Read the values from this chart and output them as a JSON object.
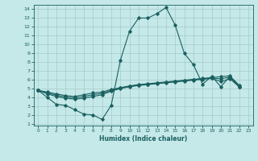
{
  "xlabel": "Humidex (Indice chaleur)",
  "bg_color": "#c5e8e8",
  "grid_color": "#aacfcf",
  "line_color": "#1a6060",
  "xlim": [
    -0.5,
    23.5
  ],
  "ylim": [
    0.8,
    14.5
  ],
  "xticks": [
    0,
    1,
    2,
    3,
    4,
    5,
    6,
    7,
    8,
    9,
    10,
    11,
    12,
    13,
    14,
    15,
    16,
    17,
    18,
    19,
    20,
    21,
    22,
    23
  ],
  "yticks": [
    1,
    2,
    3,
    4,
    5,
    6,
    7,
    8,
    9,
    10,
    11,
    12,
    13,
    14
  ],
  "series": [
    [
      4.8,
      4.0,
      3.2,
      3.1,
      2.6,
      2.1,
      2.0,
      1.5,
      3.1,
      8.2,
      11.5,
      13.0,
      13.0,
      13.5,
      14.2,
      12.2,
      9.0,
      7.7,
      5.5,
      6.4,
      5.2,
      6.4,
      5.4
    ],
    [
      4.8,
      4.6,
      4.4,
      4.2,
      4.1,
      4.3,
      4.5,
      4.6,
      4.9,
      5.1,
      5.3,
      5.45,
      5.55,
      5.65,
      5.75,
      5.85,
      5.95,
      6.05,
      6.15,
      6.25,
      6.35,
      6.45,
      5.2
    ],
    [
      4.8,
      4.4,
      4.1,
      3.9,
      3.8,
      3.9,
      4.1,
      4.3,
      4.7,
      5.0,
      5.2,
      5.35,
      5.45,
      5.55,
      5.65,
      5.75,
      5.85,
      5.95,
      6.05,
      6.15,
      5.8,
      6.1,
      5.2
    ],
    [
      4.8,
      4.5,
      4.25,
      4.05,
      3.95,
      4.1,
      4.3,
      4.45,
      4.8,
      5.05,
      5.25,
      5.4,
      5.5,
      5.6,
      5.7,
      5.8,
      5.9,
      6.0,
      6.1,
      6.2,
      6.1,
      6.3,
      5.2
    ]
  ],
  "x_range": [
    0,
    1,
    2,
    3,
    4,
    5,
    6,
    7,
    8,
    9,
    10,
    11,
    12,
    13,
    14,
    15,
    16,
    17,
    18,
    19,
    20,
    21,
    22
  ],
  "marker": "D",
  "markersize": 1.8,
  "linewidth": 0.8
}
